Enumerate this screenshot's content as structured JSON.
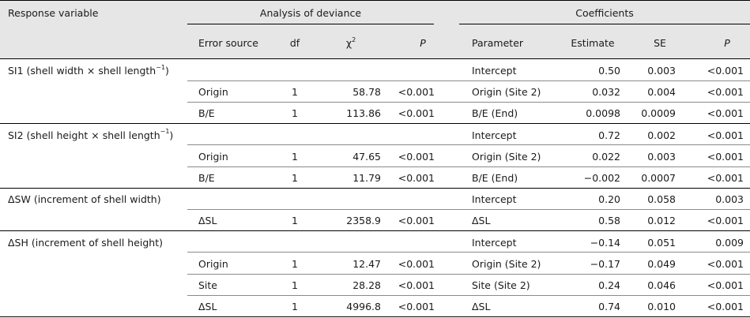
{
  "header": {
    "response_variable": "Response variable",
    "group_deviance": "Analysis of deviance",
    "group_coefficients": "Coefficients",
    "error_source": "Error source",
    "df": "df",
    "chi": "χ",
    "chi_sup": "2",
    "p1": "P",
    "parameter": "Parameter",
    "estimate": "Estimate",
    "se": "SE",
    "p2": "P"
  },
  "groups": [
    {
      "label": "SI1 (shell width × shell length",
      "label_sup": "−1",
      "label_end": ")",
      "rows": [
        {
          "source": "",
          "df": "",
          "chi2": "",
          "p": "",
          "param": "Intercept",
          "est": "0.50",
          "se": "0.003",
          "pc": "<0.001"
        },
        {
          "source": "Origin",
          "df": "1",
          "chi2": "58.78",
          "p": "<0.001",
          "param": "Origin (Site 2)",
          "est": "0.032",
          "se": "0.004",
          "pc": "<0.001"
        },
        {
          "source": "B/E",
          "df": "1",
          "chi2": "113.86",
          "p": "<0.001",
          "param": "B/E (End)",
          "est": "0.0098",
          "se": "0.0009",
          "pc": "<0.001"
        }
      ]
    },
    {
      "label": "SI2 (shell height × shell length",
      "label_sup": "−1",
      "label_end": ")",
      "rows": [
        {
          "source": "",
          "df": "",
          "chi2": "",
          "p": "",
          "param": "Intercept",
          "est": "0.72",
          "se": "0.002",
          "pc": "<0.001"
        },
        {
          "source": "Origin",
          "df": "1",
          "chi2": "47.65",
          "p": "<0.001",
          "param": "Origin (Site 2)",
          "est": "0.022",
          "se": "0.003",
          "pc": "<0.001"
        },
        {
          "source": "B/E",
          "df": "1",
          "chi2": "11.79",
          "p": "<0.001",
          "param": "B/E (End)",
          "est": "−0.002",
          "se": "0.0007",
          "pc": "<0.001"
        }
      ]
    },
    {
      "label": "ΔSW (increment of shell width)",
      "label_sup": "",
      "label_end": "",
      "rows": [
        {
          "source": "",
          "df": "",
          "chi2": "",
          "p": "",
          "param": "Intercept",
          "est": "0.20",
          "se": "0.058",
          "pc": "0.003"
        },
        {
          "source": "ΔSL",
          "df": "1",
          "chi2": "2358.9",
          "p": "<0.001",
          "param": "ΔSL",
          "est": "0.58",
          "se": "0.012",
          "pc": "<0.001"
        }
      ]
    },
    {
      "label": "ΔSH (increment of shell height)",
      "label_sup": "",
      "label_end": "",
      "rows": [
        {
          "source": "",
          "df": "",
          "chi2": "",
          "p": "",
          "param": "Intercept",
          "est": "−0.14",
          "se": "0.051",
          "pc": "0.009"
        },
        {
          "source": "Origin",
          "df": "1",
          "chi2": "12.47",
          "p": "<0.001",
          "param": "Origin (Site 2)",
          "est": "−0.17",
          "se": "0.049",
          "pc": "<0.001"
        },
        {
          "source": "Site",
          "df": "1",
          "chi2": "28.28",
          "p": "<0.001",
          "param": "Site (Site 2)",
          "est": "0.24",
          "se": "0.046",
          "pc": "<0.001"
        },
        {
          "source": "ΔSL",
          "df": "1",
          "chi2": "4996.8",
          "p": "<0.001",
          "param": "ΔSL",
          "est": "0.74",
          "se": "0.010",
          "pc": "<0.001"
        }
      ]
    }
  ]
}
